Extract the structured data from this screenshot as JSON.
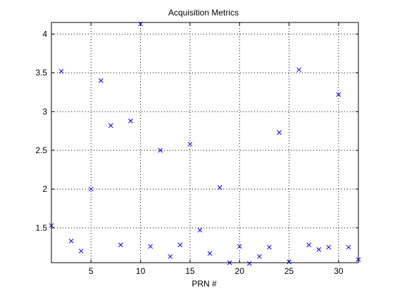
{
  "chart_data": {
    "type": "scatter",
    "title": "Acquisition Metrics",
    "xlabel": "PRN #",
    "ylabel": "",
    "xlim": [
      1,
      32
    ],
    "ylim": [
      1.05,
      4.15
    ],
    "xticks": [
      5,
      10,
      15,
      20,
      25,
      30
    ],
    "yticks": [
      1.5,
      2,
      2.5,
      3,
      3.5,
      4
    ],
    "ytick_labels": [
      "1.5",
      "2",
      "2.5",
      "3",
      "3.5",
      "4"
    ],
    "xtick_labels": [
      "5",
      "10",
      "15",
      "20",
      "25",
      "30"
    ],
    "grid": true,
    "marker": "x",
    "marker_color": "#0000ff",
    "series": [
      {
        "x": [
          1,
          2,
          3,
          4,
          5,
          6,
          7,
          8,
          9,
          10,
          11,
          12,
          13,
          14,
          15,
          16,
          17,
          18,
          19,
          20,
          21,
          22,
          23,
          24,
          25,
          26,
          27,
          28,
          29,
          30,
          31,
          32
        ],
        "values": [
          1.53,
          3.52,
          1.33,
          1.2,
          2.0,
          3.4,
          2.82,
          1.28,
          2.88,
          4.13,
          1.26,
          2.5,
          1.13,
          1.28,
          2.58,
          1.47,
          1.17,
          2.02,
          1.05,
          1.26,
          1.04,
          1.13,
          1.25,
          2.73,
          1.06,
          3.54,
          1.28,
          1.22,
          1.25,
          3.22,
          1.25,
          1.09
        ]
      }
    ]
  }
}
